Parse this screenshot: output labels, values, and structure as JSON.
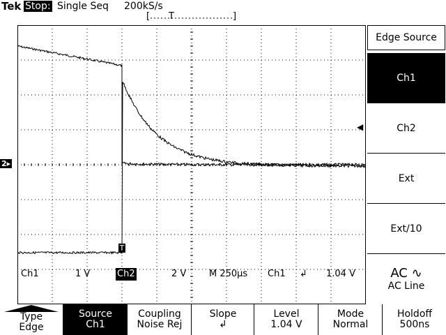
{
  "header": {
    "brand": "Tek",
    "status": "Stop:",
    "mode": "Single Seq",
    "sample_rate": "200kS/s",
    "trigger_bracket_left": "[",
    "trigger_marker": "T",
    "trigger_bracket_right": "]"
  },
  "channel_marker": "2▸",
  "trigger_point_label": "T",
  "readout": {
    "ch1_label": "Ch1",
    "ch1_scale": "1 V",
    "ch2_label": "Ch2",
    "ch2_scale": "2 V",
    "timebase": "M 250µs",
    "trig_source": "Ch1",
    "trig_slope_icon": "↲",
    "trig_level": "1.04 V"
  },
  "side_menu": {
    "title": "Edge Source",
    "items": [
      {
        "label": "Ch1",
        "selected": true
      },
      {
        "label": "Ch2",
        "selected": false
      },
      {
        "label": "Ext",
        "selected": false
      },
      {
        "label": "Ext/10",
        "selected": false
      },
      {
        "label": "AC ∿",
        "sublabel": "AC Line",
        "selected": false
      }
    ],
    "pointer": "◀"
  },
  "softkeys": [
    {
      "line1": "Type",
      "line2": "Edge",
      "selected": false
    },
    {
      "line1": "Source",
      "line2": "Ch1",
      "selected": true
    },
    {
      "line1": "Coupling",
      "line2": "Noise Rej",
      "selected": false
    },
    {
      "line1": "Slope",
      "line2": "↲",
      "selected": false
    },
    {
      "line1": "Level",
      "line2": "1.04 V",
      "selected": false
    },
    {
      "line1": "Mode",
      "line2": "Normal",
      "selected": false
    },
    {
      "line1": "Holdoff",
      "line2": "500ns",
      "selected": false
    }
  ]
}
